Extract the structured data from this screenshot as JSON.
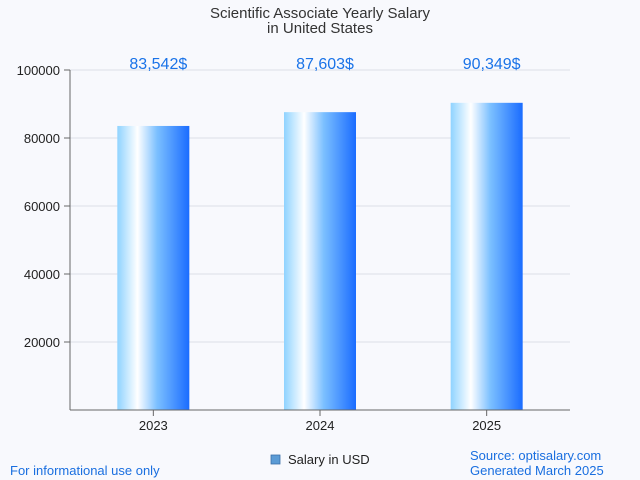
{
  "chart_data": {
    "type": "bar",
    "title_lines": [
      "Scientific Associate Yearly Salary",
      "in United States"
    ],
    "categories": [
      "2023",
      "2024",
      "2025"
    ],
    "series": [
      {
        "name": "Salary in USD",
        "values": [
          83542,
          87603,
          90349
        ],
        "labels": [
          "83,542$",
          "87,603$",
          "90,349$"
        ]
      }
    ],
    "ylim": [
      0,
      100000
    ],
    "yticks": [
      20000,
      40000,
      60000,
      80000,
      100000
    ],
    "ytick_labels": [
      "20000",
      "40000",
      "60000",
      "80000",
      "100000"
    ],
    "grid": true,
    "legend_position": "bottom-center",
    "colors": {
      "bar_edge": "#1a6cff",
      "bar_light": "#8fd3ff",
      "bar_highlight": "#ffffff",
      "label": "#1a73e8",
      "legend_swatch": "#5b9bd5"
    }
  },
  "footer": {
    "left": "For informational use only",
    "source": "Source: optisalary.com",
    "generated": "Generated March 2025"
  }
}
